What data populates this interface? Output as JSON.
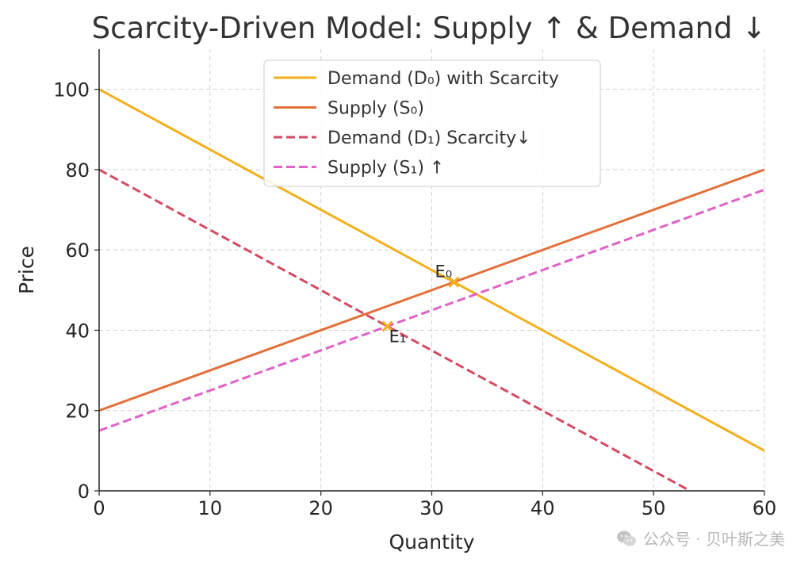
{
  "chart_data": {
    "type": "line",
    "title": "Scarcity-Driven Model: Supply ↑ & Demand ↓",
    "xlabel": "Quantity",
    "ylabel": "Price",
    "xlim": [
      0,
      60
    ],
    "ylim": [
      0,
      110
    ],
    "xticks": [
      0,
      10,
      20,
      30,
      40,
      50,
      60
    ],
    "yticks": [
      0,
      20,
      40,
      60,
      80,
      100
    ],
    "grid": true,
    "legend_position": "top-center",
    "series": [
      {
        "name": "Demand (D₀) with Scarcity",
        "color": "#f2b01e",
        "dash": "solid",
        "x": [
          0,
          60
        ],
        "y": [
          100,
          10
        ]
      },
      {
        "name": "Supply (S₀)",
        "color": "#e2703a",
        "dash": "solid",
        "x": [
          0,
          60
        ],
        "y": [
          20,
          80
        ]
      },
      {
        "name": "Demand (D₁) Scarcity↓",
        "color": "#d24a63",
        "dash": "dashed",
        "x": [
          0,
          53.3
        ],
        "y": [
          80,
          0
        ]
      },
      {
        "name": "Supply (S₁) ↑",
        "color": "#df62c7",
        "dash": "dashed",
        "x": [
          0,
          60
        ],
        "y": [
          15,
          75
        ]
      }
    ],
    "points": [
      {
        "label": "E₀",
        "x": 32,
        "y": 52,
        "color": "#f2b01e"
      },
      {
        "label": "E₁",
        "x": 26,
        "y": 41,
        "color": "#f2b01e"
      }
    ]
  },
  "watermark": {
    "text": "公众号 · 贝叶斯之美",
    "icon": "wechat-icon"
  }
}
